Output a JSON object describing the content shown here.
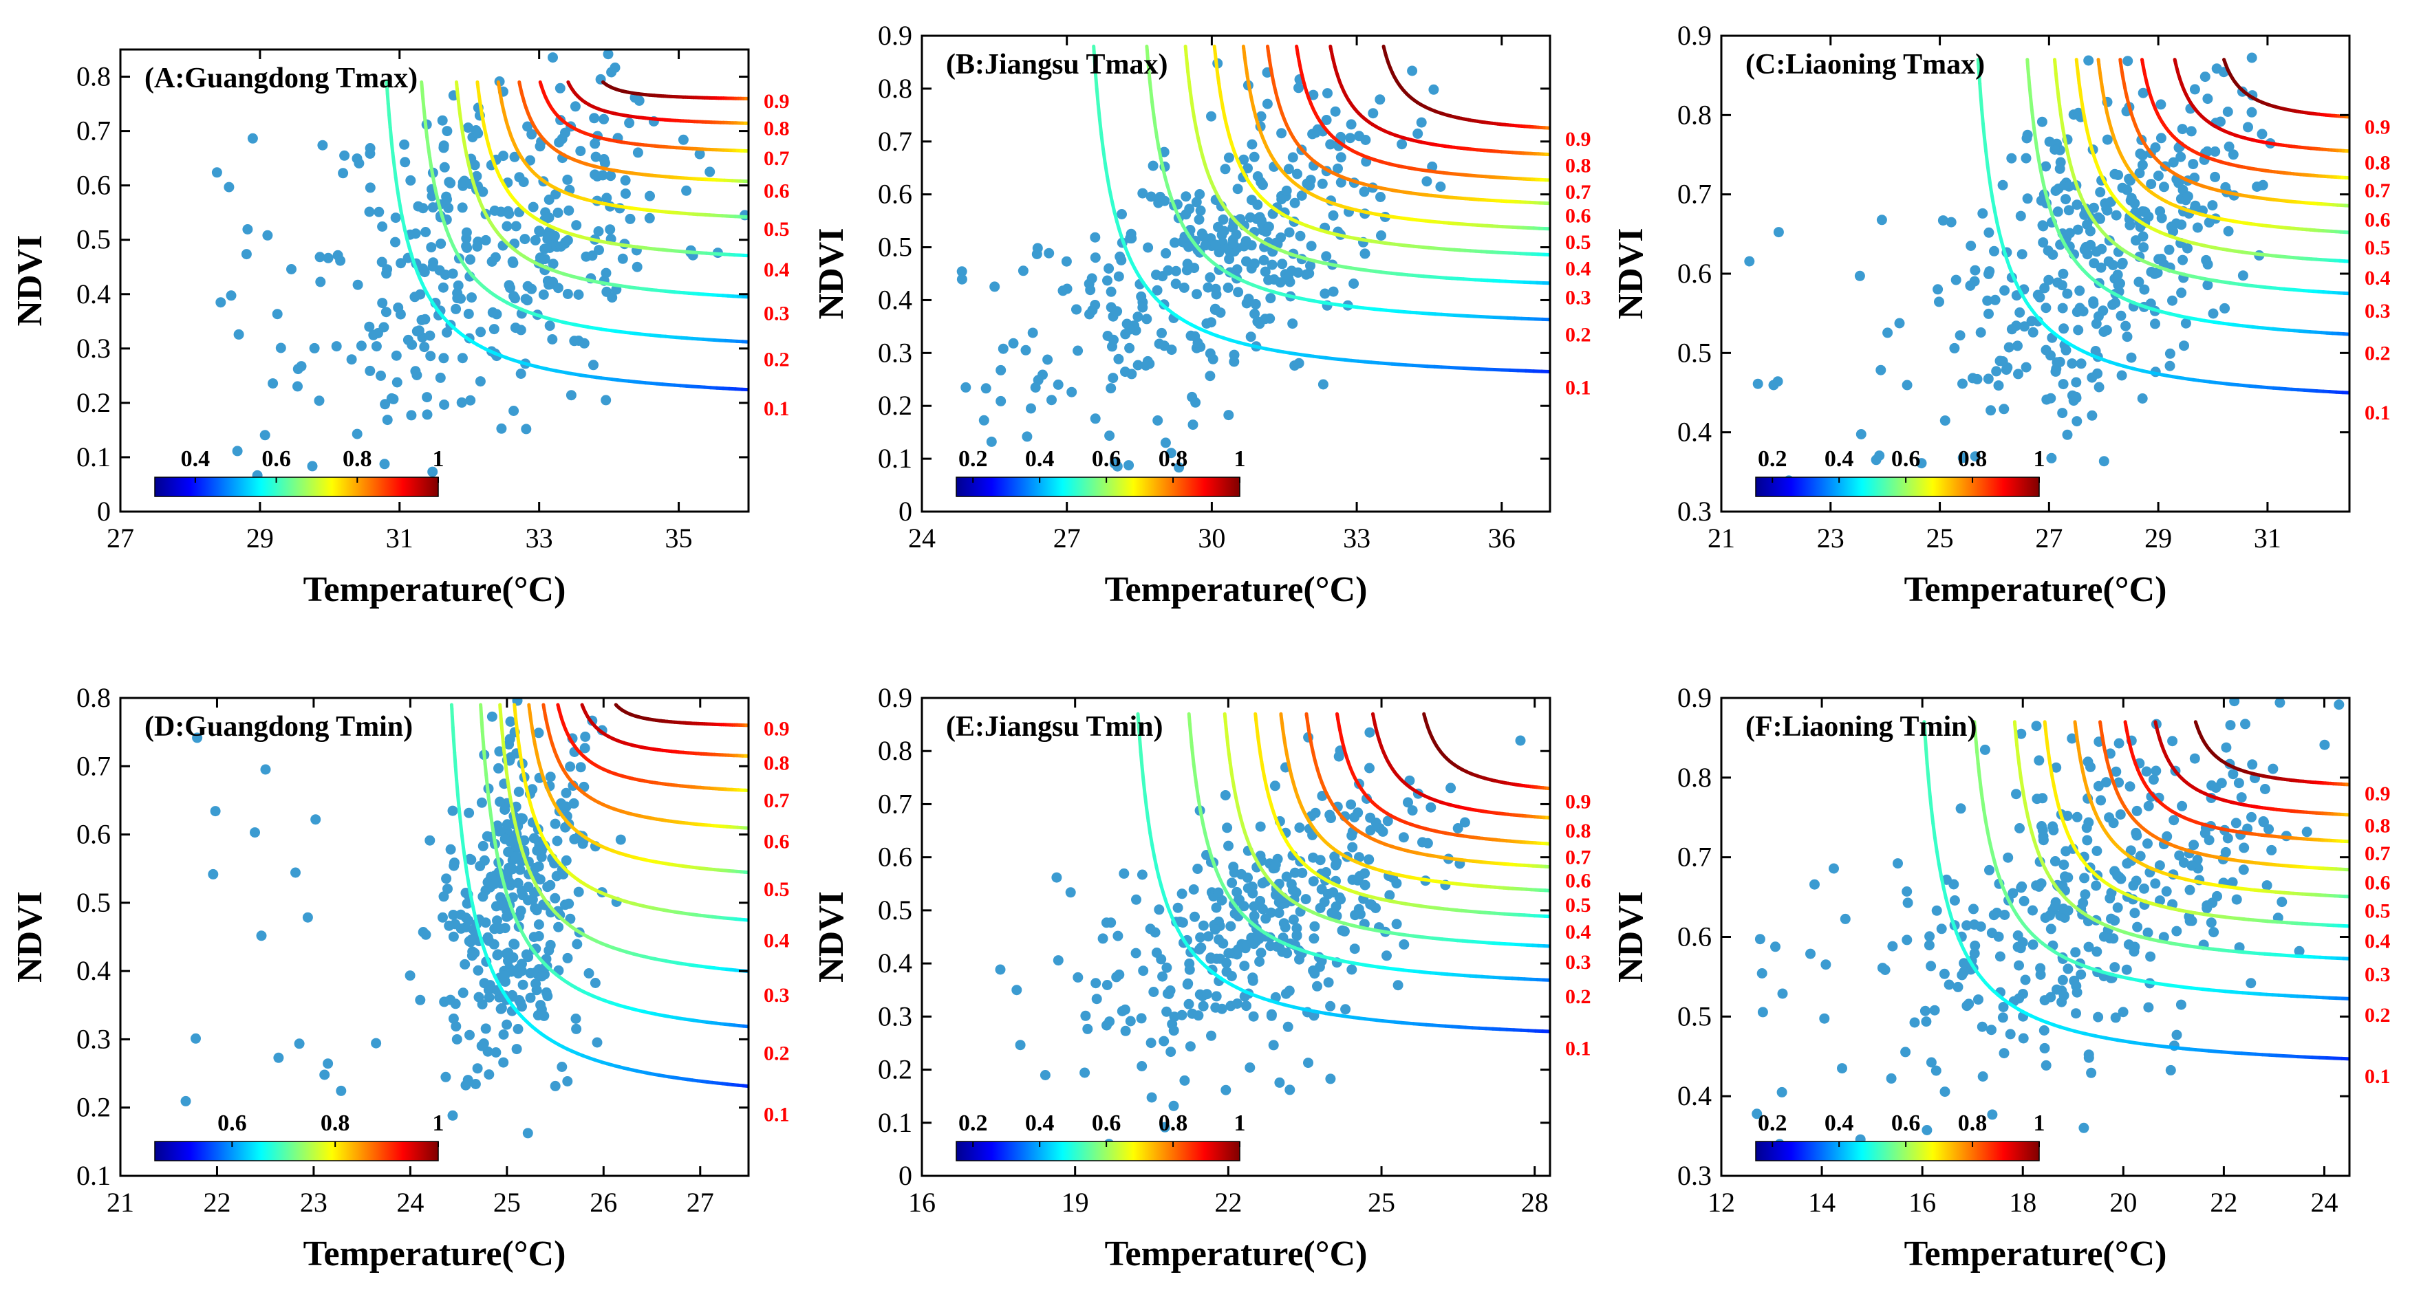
{
  "figure": {
    "colormap": [
      "#00008f",
      "#0000ff",
      "#0080ff",
      "#00ffff",
      "#80ff80",
      "#ffff00",
      "#ff8000",
      "#ff0000",
      "#800000"
    ],
    "scatter_color": "#3b9bd1",
    "contour_label_color": "#ff0000",
    "axis_color": "#000000"
  },
  "chart_data": [
    {
      "type": "scatter",
      "title": "(A:Guangdong Tmax)",
      "xlabel": "Temperature(°C)",
      "ylabel": "NDVI",
      "xlim": [
        27,
        36
      ],
      "ylim": [
        0,
        0.85
      ],
      "xticks": [
        27,
        29,
        31,
        33,
        35
      ],
      "yticks": [
        0,
        0.1,
        0.2,
        0.3,
        0.4,
        0.5,
        0.6,
        0.7,
        0.8
      ],
      "xtick_labels": [
        "27",
        "29",
        "31",
        "33",
        "35"
      ],
      "ytick_labels": [
        "0",
        "0.1",
        "0.2",
        "0.3",
        "0.4",
        "0.5",
        "0.6",
        "0.7",
        "0.8"
      ],
      "contour_levels": [
        0.1,
        0.2,
        0.3,
        0.4,
        0.5,
        0.6,
        0.7,
        0.8,
        0.9
      ],
      "contour_labels": [
        "0.1",
        "0.2",
        "0.3",
        "0.4",
        "0.5",
        "0.6",
        "0.7",
        "0.8",
        "0.9"
      ],
      "contour_asymptote_x": [
        30.5,
        31.0,
        31.5,
        31.8,
        32.1,
        32.4,
        32.7,
        33.1,
        33.6
      ],
      "contour_asymptote_y": [
        0.19,
        0.28,
        0.365,
        0.445,
        0.52,
        0.59,
        0.65,
        0.705,
        0.755
      ],
      "contour_top_y": 0.79,
      "colorbar_range": [
        0.3,
        1.0
      ],
      "colorbar_ticks": [
        0.4,
        0.6,
        0.8,
        1.0
      ],
      "colorbar_tick_labels": [
        "0.4",
        "0.6",
        "0.8",
        "1"
      ],
      "points": {
        "x_center": 32.4,
        "x_spread": 1.7,
        "y_center": 0.5,
        "y_spread": 0.2,
        "corr": 0.35,
        "n_main": 330,
        "n_sparse": 20,
        "sparse_xlim": [
          27.2,
          31.0
        ],
        "sparse_ylim": [
          0.08,
          0.75
        ],
        "seed": 11
      }
    },
    {
      "type": "scatter",
      "title": "(B:Jiangsu Tmax)",
      "xlabel": "Temperature(°C)",
      "ylabel": "NDVI",
      "xlim": [
        24,
        37
      ],
      "ylim": [
        0,
        0.9
      ],
      "xticks": [
        24,
        27,
        30,
        33,
        36
      ],
      "yticks": [
        0,
        0.1,
        0.2,
        0.3,
        0.4,
        0.5,
        0.6,
        0.7,
        0.8,
        0.9
      ],
      "xtick_labels": [
        "24",
        "27",
        "30",
        "33",
        "36"
      ],
      "ytick_labels": [
        "0",
        "0.1",
        "0.2",
        "0.3",
        "0.4",
        "0.5",
        "0.6",
        "0.7",
        "0.8",
        "0.9"
      ],
      "contour_levels": [
        0.1,
        0.2,
        0.3,
        0.4,
        0.5,
        0.6,
        0.7,
        0.8,
        0.9
      ],
      "contour_labels": [
        "0.1",
        "0.2",
        "0.3",
        "0.4",
        "0.5",
        "0.6",
        "0.7",
        "0.8",
        "0.9"
      ],
      "contour_asymptote_x": [
        27.1,
        28.2,
        29.0,
        29.6,
        30.2,
        30.7,
        31.3,
        32.0,
        33.1
      ],
      "contour_asymptote_y": [
        0.235,
        0.335,
        0.405,
        0.46,
        0.51,
        0.56,
        0.605,
        0.655,
        0.705
      ],
      "contour_top_y": 0.88,
      "colorbar_range": [
        0.15,
        1.0
      ],
      "colorbar_ticks": [
        0.2,
        0.4,
        0.6,
        0.8,
        1.0
      ],
      "colorbar_tick_labels": [
        "0.2",
        "0.4",
        "0.6",
        "0.8",
        "1"
      ],
      "points": {
        "x_center": 30.2,
        "x_spread": 2.4,
        "y_center": 0.48,
        "y_spread": 0.17,
        "corr": 0.55,
        "n_main": 330,
        "n_sparse": 18,
        "sparse_xlim": [
          24.8,
          28.5
        ],
        "sparse_ylim": [
          0.08,
          0.6
        ],
        "seed": 23
      }
    },
    {
      "type": "scatter",
      "title": "(C:Liaoning Tmax)",
      "xlabel": "Temperature(°C)",
      "ylabel": "NDVI",
      "xlim": [
        21,
        32.5
      ],
      "ylim": [
        0.3,
        0.9
      ],
      "xticks": [
        21,
        23,
        25,
        27,
        29,
        31
      ],
      "yticks": [
        0.3,
        0.4,
        0.5,
        0.6,
        0.7,
        0.8,
        0.9
      ],
      "xtick_labels": [
        "21",
        "23",
        "25",
        "27",
        "29",
        "31"
      ],
      "ytick_labels": [
        "0.3",
        "0.4",
        "0.5",
        "0.6",
        "0.7",
        "0.8",
        "0.9"
      ],
      "contour_levels": [
        0.1,
        0.2,
        0.3,
        0.4,
        0.5,
        0.6,
        0.7,
        0.8,
        0.9
      ],
      "contour_labels": [
        "0.1",
        "0.2",
        "0.3",
        "0.4",
        "0.5",
        "0.6",
        "0.7",
        "0.8",
        "0.9"
      ],
      "contour_asymptote_x": [
        25.3,
        26.2,
        26.7,
        27.1,
        27.5,
        27.9,
        28.3,
        28.9,
        29.8
      ],
      "contour_asymptote_y": [
        0.425,
        0.5,
        0.553,
        0.595,
        0.633,
        0.668,
        0.705,
        0.74,
        0.785
      ],
      "contour_top_y": 0.87,
      "colorbar_range": [
        0.15,
        1.0
      ],
      "colorbar_ticks": [
        0.2,
        0.4,
        0.6,
        0.8,
        1.0
      ],
      "colorbar_tick_labels": [
        "0.2",
        "0.4",
        "0.6",
        "0.8",
        "1"
      ],
      "points": {
        "x_center": 28.0,
        "x_spread": 1.7,
        "y_center": 0.64,
        "y_spread": 0.13,
        "corr": 0.45,
        "n_main": 330,
        "n_sparse": 20,
        "sparse_xlim": [
          21.5,
          26.0
        ],
        "sparse_ylim": [
          0.32,
          0.68
        ],
        "seed": 37
      }
    },
    {
      "type": "scatter",
      "title": "(D:Guangdong Tmin)",
      "xlabel": "Temperature(°C)",
      "ylabel": "NDVI",
      "xlim": [
        21,
        27.5
      ],
      "ylim": [
        0.1,
        0.8
      ],
      "xticks": [
        21,
        22,
        23,
        24,
        25,
        26,
        27
      ],
      "yticks": [
        0.1,
        0.2,
        0.3,
        0.4,
        0.5,
        0.6,
        0.7,
        0.8
      ],
      "xtick_labels": [
        "21",
        "22",
        "23",
        "24",
        "25",
        "26",
        "27"
      ],
      "ytick_labels": [
        "0.1",
        "0.2",
        "0.3",
        "0.4",
        "0.5",
        "0.6",
        "0.7",
        "0.8"
      ],
      "contour_levels": [
        0.1,
        0.2,
        0.3,
        0.4,
        0.5,
        0.6,
        0.7,
        0.8,
        0.9
      ],
      "contour_labels": [
        "0.1",
        "0.2",
        "0.3",
        "0.4",
        "0.5",
        "0.6",
        "0.7",
        "0.8",
        "0.9"
      ],
      "contour_asymptote_x": [
        24.2,
        24.5,
        24.7,
        24.85,
        25.0,
        25.15,
        25.3,
        25.55,
        25.9
      ],
      "contour_asymptote_y": [
        0.19,
        0.28,
        0.365,
        0.445,
        0.52,
        0.59,
        0.65,
        0.705,
        0.755
      ],
      "contour_top_y": 0.79,
      "colorbar_range": [
        0.45,
        1.0
      ],
      "colorbar_ticks": [
        0.6,
        0.8,
        1.0
      ],
      "colorbar_tick_labels": [
        "0.6",
        "0.8",
        "1"
      ],
      "points": {
        "x_center": 25.1,
        "x_spread": 0.55,
        "y_center": 0.5,
        "y_spread": 0.15,
        "corr": 0.3,
        "n_main": 330,
        "n_sparse": 18,
        "sparse_xlim": [
          21.6,
          24.2
        ],
        "sparse_ylim": [
          0.12,
          0.75
        ],
        "seed": 41
      }
    },
    {
      "type": "scatter",
      "title": "(E:Jiangsu Tmin)",
      "xlabel": "Temperature(°C)",
      "ylabel": "NDVI",
      "xlim": [
        16,
        28.3
      ],
      "ylim": [
        0,
        0.9
      ],
      "xticks": [
        16,
        19,
        22,
        25,
        28
      ],
      "yticks": [
        0,
        0.1,
        0.2,
        0.3,
        0.4,
        0.5,
        0.6,
        0.7,
        0.8,
        0.9
      ],
      "xtick_labels": [
        "16",
        "19",
        "22",
        "25",
        "28"
      ],
      "ytick_labels": [
        "0",
        "0.1",
        "0.2",
        "0.3",
        "0.4",
        "0.5",
        "0.6",
        "0.7",
        "0.8",
        "0.9"
      ],
      "contour_levels": [
        0.1,
        0.2,
        0.3,
        0.4,
        0.5,
        0.6,
        0.7,
        0.8,
        0.9
      ],
      "contour_labels": [
        "0.1",
        "0.2",
        "0.3",
        "0.4",
        "0.5",
        "0.6",
        "0.7",
        "0.8",
        "0.9"
      ],
      "contour_asymptote_x": [
        19.8,
        20.8,
        21.5,
        22.1,
        22.6,
        23.1,
        23.7,
        24.4,
        25.4
      ],
      "contour_asymptote_y": [
        0.24,
        0.338,
        0.403,
        0.46,
        0.51,
        0.556,
        0.6,
        0.65,
        0.705
      ],
      "contour_top_y": 0.87,
      "colorbar_range": [
        0.15,
        1.0
      ],
      "colorbar_ticks": [
        0.2,
        0.4,
        0.6,
        0.8,
        1.0
      ],
      "colorbar_tick_labels": [
        "0.2",
        "0.4",
        "0.6",
        "0.8",
        "1"
      ],
      "points": {
        "x_center": 23.0,
        "x_spread": 2.3,
        "y_center": 0.48,
        "y_spread": 0.17,
        "corr": 0.6,
        "n_main": 330,
        "n_sparse": 18,
        "sparse_xlim": [
          16.8,
          20.5
        ],
        "sparse_ylim": [
          0.1,
          0.6
        ],
        "seed": 53
      }
    },
    {
      "type": "scatter",
      "title": "(F:Liaoning Tmin)",
      "xlabel": "Temperature(°C)",
      "ylabel": "NDVI",
      "xlim": [
        12,
        24.5
      ],
      "ylim": [
        0.3,
        0.9
      ],
      "xticks": [
        12,
        14,
        16,
        18,
        20,
        22,
        24
      ],
      "yticks": [
        0.3,
        0.4,
        0.5,
        0.6,
        0.7,
        0.8,
        0.9
      ],
      "xtick_labels": [
        "12",
        "14",
        "16",
        "18",
        "20",
        "22",
        "24"
      ],
      "ytick_labels": [
        "0.3",
        "0.4",
        "0.5",
        "0.6",
        "0.7",
        "0.8",
        "0.9"
      ],
      "contour_levels": [
        0.1,
        0.2,
        0.3,
        0.4,
        0.5,
        0.6,
        0.7,
        0.8,
        0.9
      ],
      "contour_labels": [
        "0.1",
        "0.2",
        "0.3",
        "0.4",
        "0.5",
        "0.6",
        "0.7",
        "0.8",
        "0.9"
      ],
      "contour_asymptote_x": [
        15.6,
        16.6,
        17.4,
        18.0,
        18.6,
        19.1,
        19.6,
        20.2,
        21.0
      ],
      "contour_asymptote_y": [
        0.425,
        0.502,
        0.553,
        0.595,
        0.633,
        0.668,
        0.705,
        0.74,
        0.78
      ],
      "contour_top_y": 0.87,
      "colorbar_range": [
        0.15,
        1.0
      ],
      "colorbar_ticks": [
        0.2,
        0.4,
        0.6,
        0.8,
        1.0
      ],
      "colorbar_tick_labels": [
        "0.2",
        "0.4",
        "0.6",
        "0.8",
        "1"
      ],
      "points": {
        "x_center": 19.3,
        "x_spread": 2.4,
        "y_center": 0.63,
        "y_spread": 0.13,
        "corr": 0.45,
        "n_main": 330,
        "n_sparse": 20,
        "sparse_xlim": [
          12.4,
          16.5
        ],
        "sparse_ylim": [
          0.32,
          0.7
        ],
        "seed": 67
      }
    }
  ]
}
